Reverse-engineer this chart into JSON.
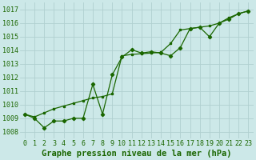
{
  "title": "Graphe pression niveau de la mer (hPa)",
  "background_color": "#cce8e8",
  "grid_color": "#b0d0d0",
  "line_color": "#1a6600",
  "marker_color": "#1a6600",
  "xlim": [
    -0.5,
    23.5
  ],
  "ylim": [
    1007.5,
    1017.5
  ],
  "xticks": [
    0,
    1,
    2,
    3,
    4,
    5,
    6,
    7,
    8,
    9,
    10,
    11,
    12,
    13,
    14,
    15,
    16,
    17,
    18,
    19,
    20,
    21,
    22,
    23
  ],
  "yticks": [
    1008,
    1009,
    1010,
    1011,
    1012,
    1013,
    1014,
    1015,
    1016,
    1017
  ],
  "series1_x": [
    0,
    1,
    2,
    3,
    4,
    5,
    6,
    7,
    8,
    9,
    10,
    11,
    12,
    13,
    14,
    15,
    16,
    17,
    18,
    19,
    20,
    21,
    22,
    23
  ],
  "series1_y": [
    1009.3,
    1009.0,
    1008.3,
    1008.8,
    1008.8,
    1009.0,
    1009.0,
    1011.5,
    1009.3,
    1012.2,
    1013.5,
    1014.05,
    1013.8,
    1013.9,
    1013.8,
    1013.6,
    1014.2,
    1015.6,
    1015.7,
    1015.0,
    1016.0,
    1016.3,
    1016.7,
    1016.9
  ],
  "series2_x": [
    0,
    1,
    2,
    3,
    4,
    5,
    6,
    7,
    8,
    9,
    10,
    11,
    12,
    13,
    14,
    15,
    16,
    17,
    18,
    19,
    20,
    21,
    22,
    23
  ],
  "series2_y": [
    1009.3,
    1009.1,
    1009.4,
    1009.7,
    1009.9,
    1010.1,
    1010.3,
    1010.5,
    1010.6,
    1010.8,
    1013.6,
    1013.7,
    1013.75,
    1013.8,
    1013.85,
    1014.5,
    1015.5,
    1015.6,
    1015.7,
    1015.8,
    1016.0,
    1016.4,
    1016.7,
    1016.9
  ],
  "title_fontsize": 7.5,
  "tick_fontsize": 6.0
}
